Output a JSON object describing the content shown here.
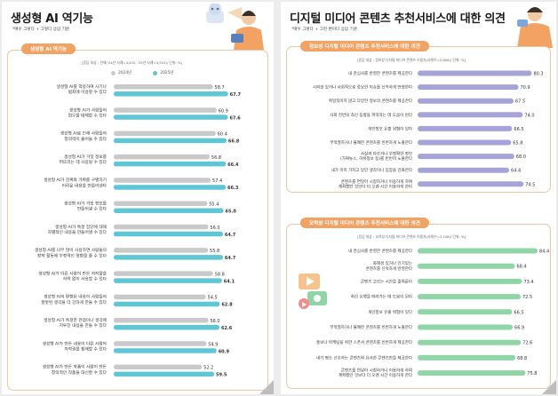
{
  "left": {
    "title": "생성형 AI 역기능",
    "subtitle": "*매우 그렇다 + 그렇다 응답 기준",
    "section_label": "생성형 AI 역기능",
    "note": "[응답 대상 : 전체('24년 사례=4,420, '25년 사례=4,324)/ 단위: %]",
    "legend": [
      "2024년",
      "2025년"
    ]
  },
  "right": {
    "title": "디지털 미디어 콘텐츠 추천서비스에 대한 의견",
    "subtitle": "*매우 그렇다 + 그런 편이다 응답 기준",
    "section1_label": "정보성 디지털 미디어 콘텐츠 추천서비스에 대한 의견",
    "section1_note": "[응답 대상 : 정보성 디지털 미디어 콘텐츠 이용자(사례수=2,806)/ 단위: %]",
    "section2_label": "오락성 디지털 미디어 콘텐츠 추천서비스에 대한 의견",
    "section2_note": "[응답 대상 : 오락성 디지털 미디어 콘텐츠 이용자(사례수=3,158)/ 단위: %]"
  },
  "colors": {
    "orange": "#f2a262",
    "grey_bar": "#c9c9c9",
    "teal_bar": "#5fc6d6",
    "purple_bar": "#a5a3d8",
    "green_bar": "#8fd5a6",
    "card_border": "#e8c7a3"
  },
  "chart_data": [
    {
      "type": "bar",
      "orientation": "horizontal",
      "categories": [
        [
          "생성형 AI를 악용하여 사기나",
          "범죄에 이용할 수 있다"
        ],
        [
          "생성형 AI가 사람들의",
          "업무를 대체할 수 있다"
        ],
        [
          "생성형 AI로 인해 사람들의",
          "창의력이 줄어들 수 있다"
        ],
        [
          "생성형 AI가 거짓 정보를",
          "퍼뜨리는 데 사용될 수 있다"
        ],
        [
          "생성형 AI가 진짜와 가짜를 구별하기",
          "어려운 내용을 만들어낸다"
        ],
        [
          "생성형 AI가 거짓 정보를",
          "만들어낼 수 있다"
        ],
        [
          "생성형 AI가 특정 집단에 대해",
          "차별적인 내용을 만들어낼 수 있다"
        ],
        [
          "생성형 AI를 너무 많이 사용하면 사람들의",
          "창작 활동에 부정적인 영향을 줄 수 있다"
        ],
        [
          "생성형 AI가 다른 사람이 만든 저작물을",
          "허락 없이 사용할 수 있다"
        ],
        [
          "생성형 AI의 편향된 내용이 사람들의",
          "잘못된 생각을 더 강하게 만들 수 있다"
        ],
        [
          "생성형 AI가 특정한 관점이나 생각에",
          "치우친 내용을 만들 수 있다"
        ],
        [
          "생성형 AI가 만든 내용이 다른 사람의",
          "저작권을 침해할 수 있다"
        ],
        [
          "생성형 AI가 만든 작품이 사람이 만든",
          "창의적인 작품을 대신할 수 있다"
        ]
      ],
      "series": [
        {
          "name": "2024년",
          "values": [
            58.7,
            60.9,
            60.4,
            56.8,
            57.4,
            55.4,
            56.0,
            55.8,
            58.8,
            54.5,
            56.0,
            54.9,
            52.2
          ]
        },
        {
          "name": "2025년",
          "values": [
            67.7,
            67.6,
            66.8,
            66.4,
            66.3,
            65.0,
            64.7,
            64.7,
            64.1,
            62.8,
            62.6,
            60.9,
            59.5
          ]
        }
      ],
      "xlim": [
        0,
        100
      ]
    },
    {
      "type": "bar",
      "orientation": "horizontal",
      "categories": [
        [
          "내 관심사를 반영한 콘텐츠를 제공한다"
        ],
        [
          "시의성 있거나 사회적으로 중요한 이슈를 신속하게 반영한다"
        ],
        [
          "획일적이지 않고 다양한 정보의 콘텐츠를 제공한다"
        ],
        [
          "사회 전반의 최신 동향을 파악하는 데 도움이 된다"
        ],
        [
          "개인정보 유출 위험이 있다"
        ],
        [
          "부적절하거나 불쾌한 콘텐츠를 빈번하게 노출한다"
        ],
        [
          "사실과 다르거나 부정확한 정보",
          "(가짜뉴스, 허위정보 등)를 빈번히 노출한다"
        ],
        [
          "내가 이미 가지고 있던 생각이나 입장을 강화한다"
        ],
        [
          "콘텐츠를 연달아 시청하거나 이용하게 하여",
          "계획했던 것보다 더 오랜 시간 이용하게 한다"
        ]
      ],
      "values": [
        80.3,
        70.9,
        67.5,
        74.0,
        66.5,
        65.8,
        68.0,
        64.4,
        74.5
      ],
      "xlim": [
        0,
        100
      ]
    },
    {
      "type": "bar",
      "orientation": "horizontal",
      "categories": [
        [
          "내 관심사를 반영한 콘텐츠를 제공한다"
        ],
        [
          "화제성 있거나 인기있는",
          "콘텐츠를 신속하게 반영한다"
        ],
        [
          "콘텐츠 고르는 시간을 줄여준다"
        ],
        [
          "최신 유행을 따라가는 데 도움이 된다"
        ],
        [
          "개인정보 유출 위험이 있다"
        ],
        [
          "부적절하거나 불쾌한 콘텐츠를 빈번하게 노출한다"
        ],
        [
          "홍보나 마케팅을 위한 스폰서 콘텐츠를 빈번하게 제공한다"
        ],
        [
          "내가 평소 선호하는 콘텐츠와 유사한 콘텐츠만을 제공한다"
        ],
        [
          "콘텐츠를 연달아 시청하거나 이용하게 하여",
          "계획했던 것보다 더 오랜 시간 이용하게 한다"
        ]
      ],
      "values": [
        84.4,
        68.4,
        73.4,
        72.5,
        66.5,
        66.9,
        72.6,
        68.8,
        75.8
      ],
      "xlim": [
        0,
        100
      ]
    }
  ]
}
